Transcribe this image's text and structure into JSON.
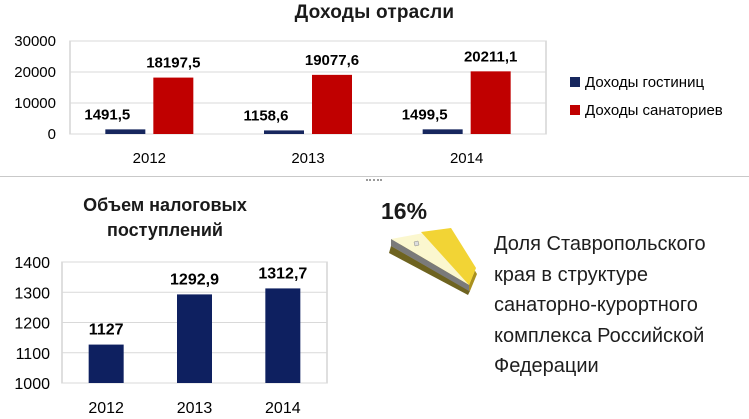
{
  "chart_data": [
    {
      "type": "bar",
      "title": "Доходы отрасли",
      "categories": [
        "2012",
        "2013",
        "2014"
      ],
      "series": [
        {
          "name": "Доходы гостиниц",
          "values": [
            1491.5,
            1158.6,
            1499.5
          ],
          "labels": [
            "1491,5",
            "1158,6",
            "1499,5"
          ],
          "color": "#17275e"
        },
        {
          "name": "Доходы санаториев",
          "values": [
            18197.5,
            19077.6,
            20211.1
          ],
          "labels": [
            "18197,5",
            "19077,6",
            "20211,1"
          ],
          "color": "#c00000"
        }
      ],
      "ylim": [
        0,
        30000
      ],
      "yticks": [
        0,
        10000,
        20000,
        30000
      ],
      "grid": true,
      "legend": "right"
    },
    {
      "type": "bar",
      "title": "Объем налоговых поступлений",
      "categories": [
        "2012",
        "2013",
        "2014"
      ],
      "series": [
        {
          "values": [
            1127,
            1292.9,
            1312.7
          ],
          "labels": [
            "1127",
            "1292,9",
            "1312,7"
          ],
          "color": "#0e2060"
        }
      ],
      "ylim": [
        1000,
        1400
      ],
      "yticks": [
        1000,
        1100,
        1200,
        1300,
        1400
      ],
      "grid": true
    }
  ],
  "share": {
    "percent": "16%",
    "text": "Доля Ставропольского края в структуре санаторно-курортного комплекса Российской Федерации"
  }
}
